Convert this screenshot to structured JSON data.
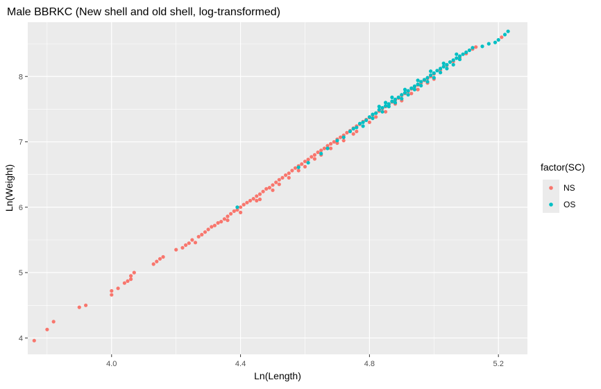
{
  "chart_data": {
    "type": "scatter",
    "title": "Male BBRKC (New shell and old shell, log-transformed)",
    "xlabel": "Ln(Length)",
    "ylabel": "Ln(Weight)",
    "xlim": [
      3.74,
      5.29
    ],
    "ylim": [
      3.75,
      8.83
    ],
    "x_ticks": [
      4.0,
      4.4,
      4.8,
      5.2
    ],
    "x_tick_labels": [
      "4.0",
      "4.4",
      "4.8",
      "5.2"
    ],
    "y_ticks": [
      4,
      5,
      6,
      7,
      8
    ],
    "y_tick_labels": [
      "4",
      "5",
      "6",
      "7",
      "8"
    ],
    "grid": true,
    "legend": {
      "title": "factor(SC)",
      "position": "right",
      "entries": [
        {
          "label": "NS",
          "color": "#F8766D"
        },
        {
          "label": "OS",
          "color": "#00BFC4"
        }
      ]
    },
    "series": [
      {
        "name": "NS",
        "color": "#F8766D",
        "points": [
          [
            3.76,
            3.96
          ],
          [
            3.8,
            4.13
          ],
          [
            3.82,
            4.25
          ],
          [
            3.9,
            4.47
          ],
          [
            3.92,
            4.5
          ],
          [
            4.0,
            4.66
          ],
          [
            4.0,
            4.72
          ],
          [
            4.02,
            4.76
          ],
          [
            4.04,
            4.84
          ],
          [
            4.05,
            4.87
          ],
          [
            4.06,
            4.9
          ],
          [
            4.06,
            4.95
          ],
          [
            4.07,
            5.0
          ],
          [
            4.13,
            5.13
          ],
          [
            4.14,
            5.17
          ],
          [
            4.15,
            5.21
          ],
          [
            4.16,
            5.24
          ],
          [
            4.2,
            5.35
          ],
          [
            4.22,
            5.38
          ],
          [
            4.23,
            5.42
          ],
          [
            4.24,
            5.45
          ],
          [
            4.25,
            5.5
          ],
          [
            4.26,
            5.46
          ],
          [
            4.27,
            5.55
          ],
          [
            4.28,
            5.58
          ],
          [
            4.29,
            5.62
          ],
          [
            4.3,
            5.66
          ],
          [
            4.31,
            5.7
          ],
          [
            4.32,
            5.72
          ],
          [
            4.33,
            5.76
          ],
          [
            4.34,
            5.78
          ],
          [
            4.35,
            5.82
          ],
          [
            4.36,
            5.86
          ],
          [
            4.37,
            5.9
          ],
          [
            4.38,
            5.94
          ],
          [
            4.39,
            5.96
          ],
          [
            4.4,
            6.0
          ],
          [
            4.41,
            6.04
          ],
          [
            4.42,
            6.07
          ],
          [
            4.43,
            6.1
          ],
          [
            4.44,
            6.13
          ],
          [
            4.45,
            6.17
          ],
          [
            4.46,
            6.2
          ],
          [
            4.47,
            6.24
          ],
          [
            4.48,
            6.28
          ],
          [
            4.49,
            6.3
          ],
          [
            4.5,
            6.34
          ],
          [
            4.51,
            6.38
          ],
          [
            4.52,
            6.42
          ],
          [
            4.53,
            6.45
          ],
          [
            4.54,
            6.49
          ],
          [
            4.55,
            6.52
          ],
          [
            4.56,
            6.56
          ],
          [
            4.57,
            6.6
          ],
          [
            4.58,
            6.63
          ],
          [
            4.59,
            6.66
          ],
          [
            4.6,
            6.7
          ],
          [
            4.61,
            6.73
          ],
          [
            4.62,
            6.77
          ],
          [
            4.63,
            6.8
          ],
          [
            4.64,
            6.84
          ],
          [
            4.65,
            6.87
          ],
          [
            4.66,
            6.9
          ],
          [
            4.67,
            6.94
          ],
          [
            4.68,
            6.97
          ],
          [
            4.69,
            7.0
          ],
          [
            4.7,
            7.04
          ],
          [
            4.71,
            7.07
          ],
          [
            4.72,
            7.1
          ],
          [
            4.73,
            7.14
          ],
          [
            4.74,
            7.17
          ],
          [
            4.75,
            7.21
          ],
          [
            4.76,
            7.24
          ],
          [
            4.77,
            7.27
          ],
          [
            4.78,
            7.31
          ],
          [
            4.79,
            7.34
          ],
          [
            4.8,
            7.37
          ],
          [
            4.81,
            7.41
          ],
          [
            4.82,
            7.44
          ],
          [
            4.83,
            7.47
          ],
          [
            4.84,
            7.51
          ],
          [
            4.85,
            7.54
          ],
          [
            4.86,
            7.57
          ],
          [
            4.87,
            7.61
          ],
          [
            4.88,
            7.64
          ],
          [
            4.89,
            7.67
          ],
          [
            4.9,
            7.71
          ],
          [
            4.91,
            7.74
          ],
          [
            4.92,
            7.77
          ],
          [
            4.93,
            7.81
          ],
          [
            4.94,
            7.84
          ],
          [
            4.95,
            7.87
          ],
          [
            4.96,
            7.9
          ],
          [
            4.97,
            7.94
          ],
          [
            4.98,
            7.97
          ],
          [
            4.99,
            8.0
          ],
          [
            5.0,
            8.04
          ],
          [
            5.02,
            8.1
          ],
          [
            5.04,
            8.17
          ],
          [
            5.06,
            8.23
          ],
          [
            5.08,
            8.29
          ],
          [
            5.1,
            8.35
          ],
          [
            5.12,
            8.42
          ],
          [
            5.13,
            8.45
          ],
          [
            5.21,
            8.6
          ],
          [
            4.46,
            6.12
          ],
          [
            4.5,
            6.26
          ],
          [
            4.55,
            6.45
          ],
          [
            4.6,
            6.62
          ],
          [
            4.65,
            6.8
          ],
          [
            4.68,
            6.9
          ],
          [
            4.72,
            7.02
          ],
          [
            4.76,
            7.16
          ],
          [
            4.8,
            7.3
          ],
          [
            4.85,
            7.46
          ],
          [
            4.9,
            7.63
          ],
          [
            4.95,
            7.8
          ],
          [
            5.0,
            7.96
          ],
          [
            4.4,
            5.92
          ],
          [
            4.45,
            6.1
          ],
          [
            4.52,
            6.35
          ],
          [
            4.58,
            6.56
          ],
          [
            4.63,
            6.74
          ],
          [
            4.7,
            6.98
          ],
          [
            4.75,
            7.12
          ],
          [
            4.82,
            7.38
          ],
          [
            4.88,
            7.58
          ],
          [
            4.93,
            7.74
          ],
          [
            4.98,
            7.9
          ],
          [
            4.36,
            5.8
          ]
        ]
      },
      {
        "name": "OS",
        "color": "#00BFC4",
        "points": [
          [
            4.39,
            6.0
          ],
          [
            4.58,
            6.61
          ],
          [
            4.61,
            6.68
          ],
          [
            4.65,
            6.82
          ],
          [
            4.67,
            6.9
          ],
          [
            4.7,
            7.02
          ],
          [
            4.72,
            7.07
          ],
          [
            4.74,
            7.16
          ],
          [
            4.76,
            7.22
          ],
          [
            4.78,
            7.3
          ],
          [
            4.79,
            7.33
          ],
          [
            4.8,
            7.38
          ],
          [
            4.81,
            7.42
          ],
          [
            4.82,
            7.44
          ],
          [
            4.83,
            7.49
          ],
          [
            4.84,
            7.52
          ],
          [
            4.85,
            7.55
          ],
          [
            4.86,
            7.58
          ],
          [
            4.87,
            7.62
          ],
          [
            4.88,
            7.65
          ],
          [
            4.89,
            7.68
          ],
          [
            4.9,
            7.72
          ],
          [
            4.91,
            7.75
          ],
          [
            4.92,
            7.78
          ],
          [
            4.93,
            7.82
          ],
          [
            4.94,
            7.85
          ],
          [
            4.95,
            7.88
          ],
          [
            4.96,
            7.92
          ],
          [
            4.97,
            7.95
          ],
          [
            4.98,
            7.98
          ],
          [
            4.99,
            8.02
          ],
          [
            5.0,
            8.05
          ],
          [
            5.01,
            8.09
          ],
          [
            5.02,
            8.12
          ],
          [
            5.03,
            8.15
          ],
          [
            5.04,
            8.18
          ],
          [
            5.05,
            8.22
          ],
          [
            5.06,
            8.25
          ],
          [
            5.07,
            8.28
          ],
          [
            5.08,
            8.31
          ],
          [
            5.09,
            8.34
          ],
          [
            5.1,
            8.37
          ],
          [
            5.11,
            8.4
          ],
          [
            5.12,
            8.44
          ],
          [
            5.15,
            8.46
          ],
          [
            5.17,
            8.5
          ],
          [
            5.19,
            8.52
          ],
          [
            5.2,
            8.56
          ],
          [
            5.22,
            8.64
          ],
          [
            5.23,
            8.69
          ],
          [
            4.78,
            7.24
          ],
          [
            4.81,
            7.36
          ],
          [
            4.84,
            7.46
          ],
          [
            4.86,
            7.54
          ],
          [
            4.88,
            7.6
          ],
          [
            4.9,
            7.66
          ],
          [
            4.92,
            7.72
          ],
          [
            4.94,
            7.8
          ],
          [
            4.96,
            7.86
          ],
          [
            4.98,
            7.92
          ],
          [
            5.0,
            7.98
          ],
          [
            5.02,
            8.06
          ],
          [
            5.04,
            8.12
          ],
          [
            5.06,
            8.18
          ],
          [
            5.08,
            8.26
          ],
          [
            4.83,
            7.54
          ],
          [
            4.87,
            7.68
          ],
          [
            4.91,
            7.8
          ],
          [
            4.95,
            7.94
          ],
          [
            4.99,
            8.08
          ],
          [
            5.03,
            8.2
          ],
          [
            5.07,
            8.34
          ],
          [
            4.75,
            7.2
          ],
          [
            4.77,
            7.28
          ],
          [
            4.85,
            7.6
          ]
        ]
      }
    ]
  }
}
